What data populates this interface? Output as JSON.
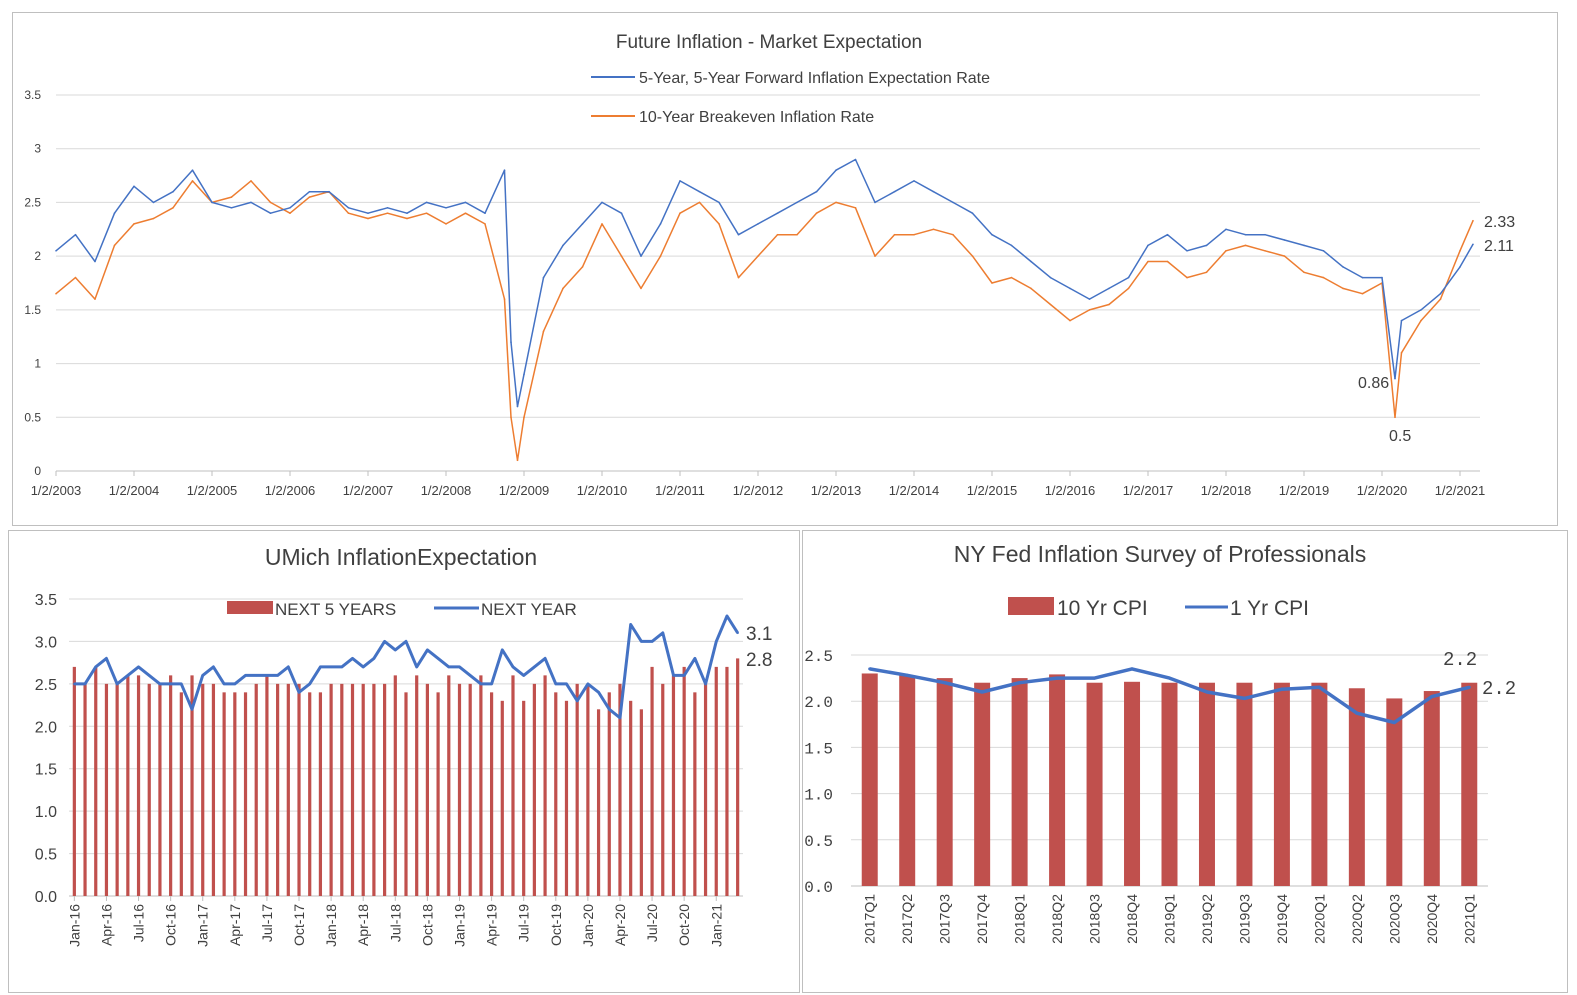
{
  "charts": {
    "market": {
      "title": "Future Inflation - Market Expectation",
      "legend": [
        "5-Year, 5-Year Forward Inflation Expectation Rate",
        "10-Year Breakeven Inflation Rate"
      ],
      "x_ticks": [
        "1/2/2003",
        "1/2/2004",
        "1/2/2005",
        "1/2/2006",
        "1/2/2007",
        "1/2/2008",
        "1/2/2009",
        "1/2/2010",
        "1/2/2011",
        "1/2/2012",
        "1/2/2013",
        "1/2/2014",
        "1/2/2015",
        "1/2/2016",
        "1/2/2017",
        "1/2/2018",
        "1/2/2019",
        "1/2/2020",
        "1/2/2021"
      ],
      "y_ticks": [
        "0",
        "0.5",
        "1",
        "1.5",
        "2",
        "2.5",
        "3",
        "3.5"
      ],
      "annotations": [
        "2.33",
        "2.11",
        "0.86",
        "0.5"
      ]
    },
    "umich": {
      "title": "UMich InflationExpectation",
      "legend": [
        "NEXT 5 YEARS",
        "NEXT YEAR"
      ],
      "x_ticks": [
        "Jan-16",
        "Apr-16",
        "Jul-16",
        "Oct-16",
        "Jan-17",
        "Apr-17",
        "Jul-17",
        "Oct-17",
        "Jan-18",
        "Apr-18",
        "Jul-18",
        "Oct-18",
        "Jan-19",
        "Apr-19",
        "Jul-19",
        "Oct-19",
        "Jan-20",
        "Apr-20",
        "Jul-20",
        "Oct-20",
        "Jan-21"
      ],
      "y_ticks": [
        "0.0",
        "0.5",
        "1.0",
        "1.5",
        "2.0",
        "2.5",
        "3.0",
        "3.5"
      ],
      "annotations": [
        "3.1",
        "2.8"
      ]
    },
    "nyfed": {
      "title": "NY Fed Inflation Survey of Professionals",
      "legend": [
        "10 Yr CPI",
        "1 Yr CPI"
      ],
      "y_ticks": [
        "0.0",
        "0.5",
        "1.0",
        "1.5",
        "2.0",
        "2.5"
      ],
      "annotations": [
        "2.2",
        "2.2"
      ]
    }
  },
  "colors": {
    "blue": "#4472c4",
    "orange": "#ed7d31",
    "bar": "#c0504d",
    "grid": "#d9d9d9",
    "text": "#404040"
  },
  "chart_data": [
    {
      "type": "line",
      "title": "Future Inflation - Market Expectation",
      "ylim": [
        0,
        3.5
      ],
      "series": [
        {
          "name": "5-Year, 5-Year Forward Inflation Expectation Rate",
          "x": [
            "2003-01",
            "2003-04",
            "2003-07",
            "2003-10",
            "2004-01",
            "2004-04",
            "2004-07",
            "2004-10",
            "2005-01",
            "2005-04",
            "2005-07",
            "2005-10",
            "2006-01",
            "2006-04",
            "2006-07",
            "2006-10",
            "2007-01",
            "2007-04",
            "2007-07",
            "2007-10",
            "2008-01",
            "2008-04",
            "2008-07",
            "2008-10",
            "2008-11",
            "2008-12",
            "2009-01",
            "2009-04",
            "2009-07",
            "2009-10",
            "2010-01",
            "2010-04",
            "2010-07",
            "2010-10",
            "2011-01",
            "2011-04",
            "2011-07",
            "2011-10",
            "2012-01",
            "2012-04",
            "2012-07",
            "2012-10",
            "2013-01",
            "2013-04",
            "2013-07",
            "2013-10",
            "2014-01",
            "2014-04",
            "2014-07",
            "2014-10",
            "2015-01",
            "2015-04",
            "2015-07",
            "2015-10",
            "2016-01",
            "2016-04",
            "2016-07",
            "2016-10",
            "2017-01",
            "2017-04",
            "2017-07",
            "2017-10",
            "2018-01",
            "2018-04",
            "2018-07",
            "2018-10",
            "2019-01",
            "2019-04",
            "2019-07",
            "2019-10",
            "2020-01",
            "2020-03",
            "2020-04",
            "2020-07",
            "2020-10",
            "2021-01",
            "2021-03"
          ],
          "values": [
            2.05,
            2.2,
            1.95,
            2.4,
            2.65,
            2.5,
            2.6,
            2.8,
            2.5,
            2.45,
            2.5,
            2.4,
            2.45,
            2.6,
            2.6,
            2.45,
            2.4,
            2.45,
            2.4,
            2.5,
            2.45,
            2.5,
            2.4,
            2.8,
            1.2,
            0.6,
            0.9,
            1.8,
            2.1,
            2.3,
            2.5,
            2.4,
            2.0,
            2.3,
            2.7,
            2.6,
            2.5,
            2.2,
            2.3,
            2.4,
            2.5,
            2.6,
            2.8,
            2.9,
            2.5,
            2.6,
            2.7,
            2.6,
            2.5,
            2.4,
            2.2,
            2.1,
            1.95,
            1.8,
            1.7,
            1.6,
            1.7,
            1.8,
            2.1,
            2.2,
            2.05,
            2.1,
            2.25,
            2.2,
            2.2,
            2.15,
            2.1,
            2.05,
            1.9,
            1.8,
            1.8,
            0.86,
            1.4,
            1.5,
            1.65,
            1.9,
            2.11
          ]
        },
        {
          "name": "10-Year Breakeven Inflation Rate",
          "x": [
            "2003-01",
            "2003-04",
            "2003-07",
            "2003-10",
            "2004-01",
            "2004-04",
            "2004-07",
            "2004-10",
            "2005-01",
            "2005-04",
            "2005-07",
            "2005-10",
            "2006-01",
            "2006-04",
            "2006-07",
            "2006-10",
            "2007-01",
            "2007-04",
            "2007-07",
            "2007-10",
            "2008-01",
            "2008-04",
            "2008-07",
            "2008-10",
            "2008-11",
            "2008-12",
            "2009-01",
            "2009-04",
            "2009-07",
            "2009-10",
            "2010-01",
            "2010-04",
            "2010-07",
            "2010-10",
            "2011-01",
            "2011-04",
            "2011-07",
            "2011-10",
            "2012-01",
            "2012-04",
            "2012-07",
            "2012-10",
            "2013-01",
            "2013-04",
            "2013-07",
            "2013-10",
            "2014-01",
            "2014-04",
            "2014-07",
            "2014-10",
            "2015-01",
            "2015-04",
            "2015-07",
            "2015-10",
            "2016-01",
            "2016-04",
            "2016-07",
            "2016-10",
            "2017-01",
            "2017-04",
            "2017-07",
            "2017-10",
            "2018-01",
            "2018-04",
            "2018-07",
            "2018-10",
            "2019-01",
            "2019-04",
            "2019-07",
            "2019-10",
            "2020-01",
            "2020-03",
            "2020-04",
            "2020-07",
            "2020-10",
            "2021-01",
            "2021-03"
          ],
          "values": [
            1.65,
            1.8,
            1.6,
            2.1,
            2.3,
            2.35,
            2.45,
            2.7,
            2.5,
            2.55,
            2.7,
            2.5,
            2.4,
            2.55,
            2.6,
            2.4,
            2.35,
            2.4,
            2.35,
            2.4,
            2.3,
            2.4,
            2.3,
            1.6,
            0.5,
            0.1,
            0.5,
            1.3,
            1.7,
            1.9,
            2.3,
            2.0,
            1.7,
            2.0,
            2.4,
            2.5,
            2.3,
            1.8,
            2.0,
            2.2,
            2.2,
            2.4,
            2.5,
            2.45,
            2.0,
            2.2,
            2.2,
            2.25,
            2.2,
            2.0,
            1.75,
            1.8,
            1.7,
            1.55,
            1.4,
            1.5,
            1.55,
            1.7,
            1.95,
            1.95,
            1.8,
            1.85,
            2.05,
            2.1,
            2.05,
            2.0,
            1.85,
            1.8,
            1.7,
            1.65,
            1.75,
            0.5,
            1.1,
            1.4,
            1.6,
            2.05,
            2.33
          ]
        }
      ]
    },
    {
      "type": "bar",
      "title": "UMich InflationExpectation",
      "ylim": [
        0,
        3.5
      ],
      "categories": [
        "Jan-16",
        "Feb-16",
        "Mar-16",
        "Apr-16",
        "May-16",
        "Jun-16",
        "Jul-16",
        "Aug-16",
        "Sep-16",
        "Oct-16",
        "Nov-16",
        "Dec-16",
        "Jan-17",
        "Feb-17",
        "Mar-17",
        "Apr-17",
        "May-17",
        "Jun-17",
        "Jul-17",
        "Aug-17",
        "Sep-17",
        "Oct-17",
        "Nov-17",
        "Dec-17",
        "Jan-18",
        "Feb-18",
        "Mar-18",
        "Apr-18",
        "May-18",
        "Jun-18",
        "Jul-18",
        "Aug-18",
        "Sep-18",
        "Oct-18",
        "Nov-18",
        "Dec-18",
        "Jan-19",
        "Feb-19",
        "Mar-19",
        "Apr-19",
        "May-19",
        "Jun-19",
        "Jul-19",
        "Aug-19",
        "Sep-19",
        "Oct-19",
        "Nov-19",
        "Dec-19",
        "Jan-20",
        "Feb-20",
        "Mar-20",
        "Apr-20",
        "May-20",
        "Jun-20",
        "Jul-20",
        "Aug-20",
        "Sep-20",
        "Oct-20",
        "Nov-20",
        "Dec-20",
        "Jan-21",
        "Feb-21",
        "Mar-21"
      ],
      "series": [
        {
          "name": "NEXT 5 YEARS",
          "values": [
            2.7,
            2.5,
            2.7,
            2.5,
            2.5,
            2.6,
            2.6,
            2.5,
            2.5,
            2.6,
            2.4,
            2.6,
            2.5,
            2.5,
            2.4,
            2.4,
            2.4,
            2.5,
            2.6,
            2.5,
            2.5,
            2.5,
            2.4,
            2.4,
            2.5,
            2.5,
            2.5,
            2.5,
            2.5,
            2.5,
            2.6,
            2.4,
            2.6,
            2.5,
            2.4,
            2.6,
            2.5,
            2.5,
            2.6,
            2.4,
            2.3,
            2.6,
            2.3,
            2.5,
            2.6,
            2.4,
            2.3,
            2.5,
            2.5,
            2.2,
            2.4,
            2.5,
            2.3,
            2.2,
            2.7,
            2.5,
            2.6,
            2.7,
            2.4,
            2.5,
            2.7,
            2.7,
            2.8
          ]
        },
        {
          "name": "NEXT YEAR",
          "values": [
            2.5,
            2.5,
            2.7,
            2.8,
            2.5,
            2.6,
            2.7,
            2.6,
            2.5,
            2.5,
            2.5,
            2.2,
            2.6,
            2.7,
            2.5,
            2.5,
            2.6,
            2.6,
            2.6,
            2.6,
            2.7,
            2.4,
            2.5,
            2.7,
            2.7,
            2.7,
            2.8,
            2.7,
            2.8,
            3.0,
            2.9,
            3.0,
            2.7,
            2.9,
            2.8,
            2.7,
            2.7,
            2.6,
            2.5,
            2.5,
            2.9,
            2.7,
            2.6,
            2.7,
            2.8,
            2.5,
            2.5,
            2.3,
            2.5,
            2.4,
            2.2,
            2.1,
            3.2,
            3.0,
            3.0,
            3.1,
            2.6,
            2.6,
            2.8,
            2.5,
            3.0,
            3.3,
            3.1
          ]
        }
      ]
    },
    {
      "type": "bar",
      "title": "NY Fed Inflation Survey of Professionals",
      "ylim": [
        0,
        2.5
      ],
      "categories": [
        "2017Q1",
        "2017Q2",
        "2017Q3",
        "2017Q4",
        "2018Q1",
        "2018Q2",
        "2018Q3",
        "2018Q4",
        "2019Q1",
        "2019Q2",
        "2019Q3",
        "2019Q4",
        "2020Q1",
        "2020Q2",
        "2020Q3",
        "2020Q4",
        "2021Q1"
      ],
      "series": [
        {
          "name": "10 Yr CPI",
          "values": [
            2.3,
            2.28,
            2.25,
            2.2,
            2.25,
            2.29,
            2.2,
            2.21,
            2.2,
            2.2,
            2.2,
            2.2,
            2.2,
            2.14,
            2.03,
            2.11,
            2.2
          ]
        },
        {
          "name": "1 Yr CPI",
          "values": [
            2.35,
            2.28,
            2.2,
            2.1,
            2.2,
            2.25,
            2.25,
            2.35,
            2.25,
            2.1,
            2.03,
            2.13,
            2.15,
            1.87,
            1.77,
            2.05,
            2.15
          ]
        }
      ]
    }
  ]
}
